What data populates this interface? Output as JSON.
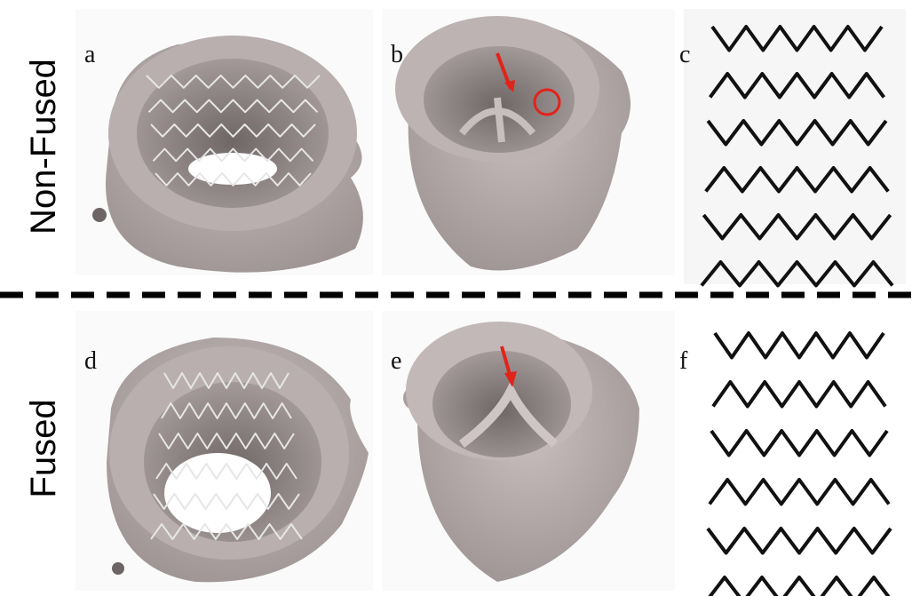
{
  "rows": [
    {
      "label": "Non-Fused"
    },
    {
      "label": "Fused"
    }
  ],
  "panels": [
    {
      "letter": "a"
    },
    {
      "letter": "b"
    },
    {
      "letter": "c"
    },
    {
      "letter": "d"
    },
    {
      "letter": "e"
    },
    {
      "letter": "f"
    }
  ]
}
